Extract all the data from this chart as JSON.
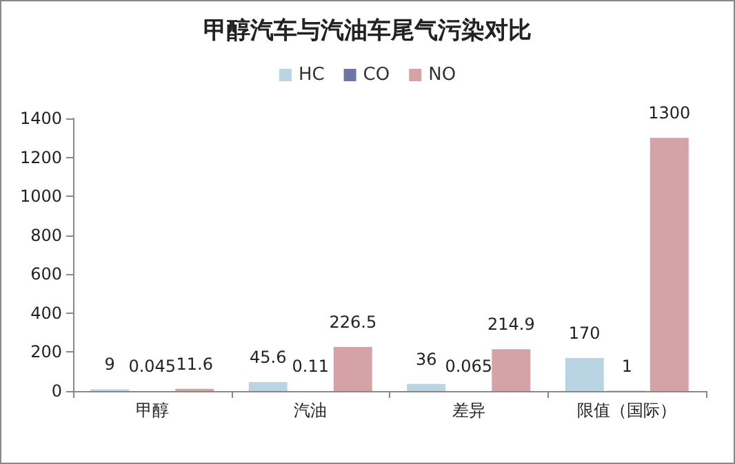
{
  "chart_data": {
    "type": "bar",
    "title": "甲醇汽车与汽油车尾气污染对比",
    "categories": [
      "甲醇",
      "汽油",
      "差异",
      "限值（国际）"
    ],
    "series": [
      {
        "name": "HC",
        "color": "#b9d5e4",
        "values": [
          9,
          45.6,
          36,
          170
        ]
      },
      {
        "name": "CO",
        "color": "#6f76a6",
        "values": [
          0.045,
          0.11,
          0.065,
          1
        ]
      },
      {
        "name": "NO",
        "color": "#d5a3a6",
        "values": [
          11.6,
          226.5,
          214.9,
          1300
        ]
      }
    ],
    "ylim": [
      0,
      1400
    ],
    "yticks": [
      0,
      200,
      400,
      600,
      800,
      1000,
      1200,
      1400
    ],
    "data_labels": true,
    "grid": false,
    "legend": "top"
  }
}
